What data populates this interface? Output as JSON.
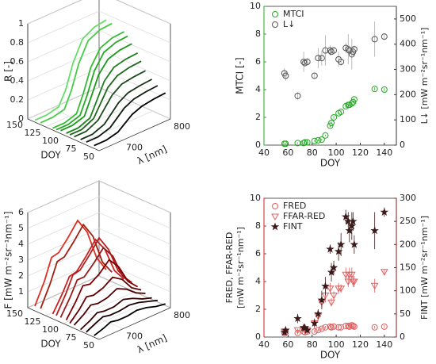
{
  "chart_data": [
    {
      "type": "line3d",
      "zlabel": "R [-]",
      "ylabel": "DOY",
      "xlabel": "λ [nm]",
      "x": [
        650,
        675,
        700,
        715,
        730,
        750,
        775,
        800
      ],
      "xlim": [
        650,
        800
      ],
      "xticks": [
        700,
        800
      ],
      "doylim": [
        50,
        150
      ],
      "doyticks": [
        50,
        75,
        100,
        125,
        150
      ],
      "zlim": [
        0,
        1
      ],
      "zticks": [
        0,
        0.2,
        0.4,
        0.6,
        0.8,
        1
      ],
      "grid": true,
      "series": [
        {
          "doy": 57,
          "color": "#000000",
          "values": [
            0.03,
            0.03,
            0.06,
            0.12,
            0.18,
            0.22,
            0.24,
            0.25
          ]
        },
        {
          "doy": 68,
          "color": "#0d1a0d",
          "values": [
            0.03,
            0.03,
            0.07,
            0.14,
            0.21,
            0.26,
            0.28,
            0.29
          ]
        },
        {
          "doy": 76,
          "color": "#163316",
          "values": [
            0.03,
            0.03,
            0.08,
            0.16,
            0.24,
            0.3,
            0.32,
            0.33
          ]
        },
        {
          "doy": 85,
          "color": "#1c4d1c",
          "values": [
            0.03,
            0.03,
            0.09,
            0.19,
            0.29,
            0.36,
            0.38,
            0.39
          ]
        },
        {
          "doy": 91,
          "color": "#1f661f",
          "values": [
            0.03,
            0.03,
            0.09,
            0.22,
            0.35,
            0.43,
            0.46,
            0.47
          ]
        },
        {
          "doy": 96,
          "color": "#1d801d",
          "values": [
            0.03,
            0.03,
            0.08,
            0.24,
            0.4,
            0.5,
            0.53,
            0.54
          ]
        },
        {
          "doy": 104,
          "color": "#1a991a",
          "values": [
            0.03,
            0.03,
            0.07,
            0.25,
            0.44,
            0.56,
            0.6,
            0.61
          ]
        },
        {
          "doy": 110,
          "color": "#22aa22",
          "values": [
            0.02,
            0.02,
            0.06,
            0.24,
            0.46,
            0.61,
            0.66,
            0.67
          ]
        },
        {
          "doy": 115,
          "color": "#33bb33",
          "values": [
            0.02,
            0.02,
            0.06,
            0.25,
            0.48,
            0.64,
            0.69,
            0.7
          ]
        },
        {
          "doy": 132,
          "color": "#44cc44",
          "values": [
            0.02,
            0.02,
            0.05,
            0.22,
            0.46,
            0.66,
            0.72,
            0.73
          ]
        },
        {
          "doy": 140,
          "color": "#66dd66",
          "values": [
            0.02,
            0.02,
            0.05,
            0.2,
            0.44,
            0.65,
            0.72,
            0.74
          ]
        }
      ]
    },
    {
      "type": "scatter",
      "xlabel": "DOY",
      "ylabel": "MTCI [-]",
      "y2label": "L↓ [mW m⁻²sr⁻¹nm⁻¹]",
      "ycolor": "#22aa22",
      "y2color": "#333333",
      "x": [
        57,
        58,
        68,
        73,
        74,
        76,
        82,
        85,
        88,
        91,
        95,
        96,
        98,
        102,
        104,
        108,
        110,
        111,
        113,
        114,
        115,
        132,
        140
      ],
      "xlim": [
        40,
        150
      ],
      "xticks": [
        40,
        60,
        80,
        100,
        120,
        140
      ],
      "ylim": [
        0,
        10
      ],
      "yticks": [
        0,
        2,
        4,
        6,
        8,
        10
      ],
      "y2lim": [
        0,
        550
      ],
      "y2ticks": [
        0,
        100,
        200,
        300,
        400,
        500
      ],
      "legend": "upper left",
      "series": [
        {
          "name": "MTCI",
          "color": "#22aa22",
          "marker": "circle",
          "values": [
            0.1,
            0.1,
            0.15,
            0.15,
            0.2,
            0.2,
            0.3,
            0.35,
            0.4,
            0.7,
            1.4,
            1.6,
            2.0,
            2.3,
            2.4,
            2.8,
            2.9,
            2.9,
            3.0,
            3.1,
            3.3,
            4.05,
            4.0
          ],
          "errors": [
            0.05,
            0.05,
            0.05,
            0.05,
            0.05,
            0.05,
            0.05,
            0.05,
            0.05,
            0.05,
            0.1,
            0.1,
            0.1,
            0.1,
            0.1,
            0.1,
            0.1,
            0.1,
            0.1,
            0.1,
            0.1,
            0.1,
            0.1
          ]
        },
        {
          "name": "L↓",
          "color": "#555555",
          "marker": "circle",
          "axis": "y2",
          "values": [
            285,
            275,
            195,
            330,
            325,
            330,
            275,
            345,
            345,
            375,
            375,
            370,
            375,
            340,
            330,
            385,
            380,
            375,
            360,
            370,
            380,
            420,
            430
          ],
          "errors": [
            20,
            20,
            15,
            40,
            10,
            15,
            10,
            40,
            30,
            60,
            20,
            10,
            15,
            30,
            15,
            20,
            60,
            20,
            60,
            20,
            15,
            70,
            10
          ]
        }
      ]
    },
    {
      "type": "line3d",
      "zlabel": "F [mW m⁻²sr⁻¹nm⁻¹]",
      "ylabel": "DOY",
      "xlabel": "λ [nm]",
      "x": [
        650,
        670,
        685,
        700,
        720,
        740,
        760,
        780,
        800
      ],
      "xlim": [
        650,
        800
      ],
      "xticks": [
        700,
        800
      ],
      "doylim": [
        50,
        150
      ],
      "doyticks": [
        50,
        75,
        100,
        125,
        150
      ],
      "zlim": [
        0,
        6
      ],
      "zticks": [
        1,
        2,
        3,
        4,
        5,
        6
      ],
      "grid": true,
      "series": [
        {
          "doy": 57,
          "color": "#000000",
          "values": [
            0.1,
            0.3,
            0.5,
            0.4,
            0.4,
            0.5,
            0.4,
            0.2,
            0.1
          ]
        },
        {
          "doy": 68,
          "color": "#1a0000",
          "values": [
            0.1,
            0.4,
            0.6,
            0.5,
            0.5,
            0.6,
            0.5,
            0.3,
            0.1
          ]
        },
        {
          "doy": 76,
          "color": "#330000",
          "values": [
            0.1,
            0.4,
            0.7,
            0.6,
            0.6,
            0.8,
            0.6,
            0.3,
            0.1
          ]
        },
        {
          "doy": 85,
          "color": "#4d0000",
          "values": [
            0.2,
            0.6,
            1.0,
            0.9,
            1.0,
            1.3,
            1.0,
            0.5,
            0.2
          ]
        },
        {
          "doy": 91,
          "color": "#660000",
          "values": [
            0.2,
            0.8,
            1.4,
            1.3,
            1.5,
            1.9,
            1.5,
            0.7,
            0.3
          ]
        },
        {
          "doy": 96,
          "color": "#800000",
          "values": [
            0.3,
            1.2,
            2.0,
            1.9,
            2.3,
            2.9,
            2.2,
            1.0,
            0.4
          ]
        },
        {
          "doy": 104,
          "color": "#991a1a",
          "values": [
            0.3,
            1.3,
            2.2,
            2.2,
            2.8,
            3.5,
            2.7,
            1.2,
            0.5
          ]
        },
        {
          "doy": 110,
          "color": "#b32020",
          "values": [
            0.3,
            1.4,
            2.4,
            2.5,
            3.2,
            4.0,
            3.0,
            1.4,
            0.5
          ]
        },
        {
          "doy": 115,
          "color": "#cc2020",
          "values": [
            0.3,
            1.3,
            2.2,
            2.3,
            3.0,
            3.8,
            2.9,
            1.3,
            0.5
          ]
        },
        {
          "doy": 132,
          "color": "#a02010",
          "values": [
            0.3,
            1.6,
            2.8,
            2.9,
            3.6,
            4.4,
            3.4,
            1.5,
            0.6
          ]
        },
        {
          "doy": 140,
          "color": "#dd3020",
          "values": [
            0.3,
            1.6,
            2.9,
            3.0,
            3.7,
            4.5,
            3.5,
            1.6,
            0.6
          ]
        }
      ]
    },
    {
      "type": "scatter",
      "xlabel": "DOY",
      "ylabel": [
        "FRED, FFAR-RED",
        "[mW m⁻²sr⁻¹nm⁻¹]"
      ],
      "y2label": "FINT [mW m⁻²sr⁻¹nm⁻¹]",
      "ycolor": "#cc2222",
      "y2color": "#8b1a1a",
      "x": [
        57,
        58,
        68,
        73,
        74,
        76,
        82,
        85,
        88,
        91,
        95,
        96,
        98,
        102,
        104,
        108,
        110,
        111,
        113,
        114,
        115,
        132,
        140
      ],
      "xlim": [
        40,
        150
      ],
      "xticks": [
        40,
        60,
        80,
        100,
        120,
        140
      ],
      "ylim": [
        0,
        10
      ],
      "yticks": [
        0,
        2,
        4,
        6,
        8,
        10
      ],
      "y2lim": [
        0,
        300
      ],
      "y2ticks": [
        0,
        50,
        100,
        150,
        200,
        250,
        300
      ],
      "legend": "upper left",
      "series": [
        {
          "name": "FRED",
          "color": "#e06060",
          "marker": "circle",
          "values": [
            0.3,
            0.35,
            0.3,
            0.4,
            0.35,
            0.4,
            0.4,
            0.5,
            0.6,
            0.7,
            0.75,
            0.7,
            0.75,
            0.7,
            0.7,
            0.8,
            0.8,
            0.75,
            0.85,
            0.8,
            0.75,
            0.7,
            0.75
          ],
          "errors": [
            0.1,
            0.1,
            0.1,
            0.1,
            0.1,
            0.1,
            0.1,
            0.1,
            0.1,
            0.1,
            0.1,
            0.1,
            0.1,
            0.1,
            0.1,
            0.1,
            0.1,
            0.1,
            0.1,
            0.1,
            0.1,
            0.1,
            0.1
          ]
        },
        {
          "name": "FFAR-RED",
          "color": "#e06060",
          "marker": "triangle",
          "values": [
            0.4,
            0.4,
            0.5,
            0.6,
            0.6,
            0.5,
            1.0,
            1.5,
            2.5,
            3.0,
            3.5,
            2.5,
            3.0,
            3.5,
            3.5,
            4.5,
            4.0,
            4.5,
            4.5,
            4.0,
            4.0,
            3.7,
            4.7
          ],
          "errors": [
            0.1,
            0.1,
            0.1,
            0.1,
            0.1,
            0.1,
            0.2,
            0.3,
            0.4,
            0.5,
            0.4,
            0.3,
            0.3,
            0.4,
            0.3,
            0.5,
            0.4,
            0.5,
            0.5,
            0.4,
            0.4,
            0.5,
            0.2
          ]
        },
        {
          "name": "FINT",
          "color": "#3a1a1a",
          "marker": "star",
          "axis": "y2",
          "values": [
            10,
            15,
            40,
            20,
            20,
            15,
            30,
            50,
            80,
            110,
            190,
            140,
            150,
            185,
            200,
            260,
            250,
            230,
            240,
            250,
            200,
            230,
            270
          ],
          "errors": [
            5,
            5,
            10,
            5,
            5,
            5,
            10,
            10,
            20,
            20,
            10,
            20,
            15,
            20,
            25,
            15,
            20,
            25,
            30,
            20,
            20,
            40,
            10
          ]
        }
      ]
    }
  ]
}
